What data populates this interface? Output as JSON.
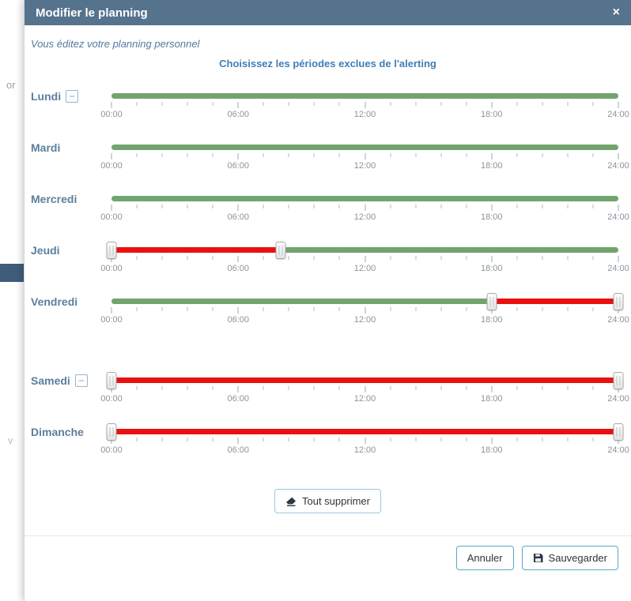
{
  "background": {
    "fragment_1": "or",
    "fragment_2": "v"
  },
  "modal": {
    "header": {
      "title": "Modifier le planning",
      "close_icon": "×"
    },
    "subtitle": "Vous éditez votre planning personnel",
    "heading": "Choisissez les périodes exclues de l'alerting",
    "collapse_icon": "−",
    "slider": {
      "hours_max": 24,
      "tick_labels": [
        "00:00",
        "06:00",
        "12:00",
        "18:00",
        "24:00"
      ]
    },
    "days": [
      {
        "label": "Lundi",
        "collapse_toggle": true,
        "gap_before": false,
        "segments": [
          {
            "start": 0,
            "end": 24,
            "color": "green"
          }
        ],
        "handles": []
      },
      {
        "label": "Mardi",
        "collapse_toggle": false,
        "gap_before": false,
        "segments": [
          {
            "start": 0,
            "end": 24,
            "color": "green"
          }
        ],
        "handles": []
      },
      {
        "label": "Mercredi",
        "collapse_toggle": false,
        "gap_before": false,
        "segments": [
          {
            "start": 0,
            "end": 24,
            "color": "green"
          }
        ],
        "handles": []
      },
      {
        "label": "Jeudi",
        "collapse_toggle": false,
        "gap_before": false,
        "segments": [
          {
            "start": 0,
            "end": 8,
            "color": "red"
          },
          {
            "start": 8,
            "end": 24,
            "color": "green"
          }
        ],
        "handles": [
          0,
          8
        ]
      },
      {
        "label": "Vendredi",
        "collapse_toggle": false,
        "gap_before": false,
        "segments": [
          {
            "start": 0,
            "end": 18,
            "color": "green"
          },
          {
            "start": 18,
            "end": 24,
            "color": "red"
          }
        ],
        "handles": [
          18,
          24
        ]
      },
      {
        "label": "Samedi",
        "collapse_toggle": true,
        "gap_before": true,
        "segments": [
          {
            "start": 0,
            "end": 24,
            "color": "red"
          }
        ],
        "handles": [
          0,
          24
        ]
      },
      {
        "label": "Dimanche",
        "collapse_toggle": false,
        "gap_before": false,
        "segments": [
          {
            "start": 0,
            "end": 24,
            "color": "red"
          }
        ],
        "handles": [
          0,
          24
        ]
      }
    ],
    "clear_all_button": {
      "label": "Tout supprimer"
    },
    "footer": {
      "cancel_label": "Annuler",
      "save_label": "Sauvegarder"
    }
  },
  "colors": {
    "header_bg": "#56738e",
    "green": "#72a46f",
    "red": "#ea1010",
    "heading_blue": "#3f7fb5",
    "day_label": "#5c7e9d",
    "footer_button_border": "#5aa7c6"
  }
}
